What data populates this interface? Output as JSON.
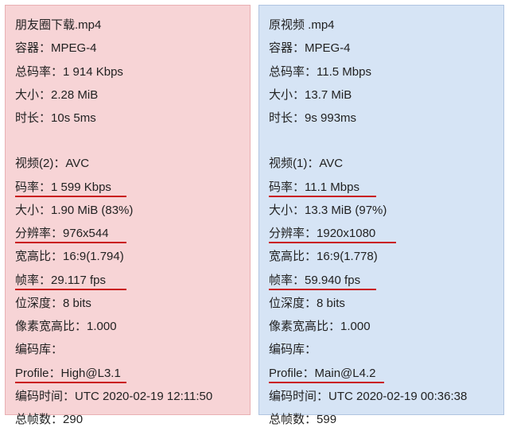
{
  "left": {
    "filename": "朋友圈下载.mp4",
    "container_label": "容器：",
    "container_value": "MPEG-4",
    "total_bitrate_label": "总码率：",
    "total_bitrate_value": "1 914 Kbps",
    "size_label": "大小：",
    "size_value": "2.28 MiB",
    "duration_label": "时长：",
    "duration_value": "10s 5ms",
    "video_header": "视频(2)：AVC",
    "bitrate_label": "码率：",
    "bitrate_value": "1 599 Kbps",
    "vsize_label": "大小：",
    "vsize_value": "1.90 MiB (83%)",
    "resolution_label": "分辨率：",
    "resolution_value": "976x544",
    "aspect_label": "宽高比：",
    "aspect_value": "16:9(1.794)",
    "fps_label": "帧率：",
    "fps_value": "29.117 fps",
    "bitdepth_label": "位深度：",
    "bitdepth_value": "8 bits",
    "par_label": "像素宽高比：",
    "par_value": "1.000",
    "codec_label": "编码库：",
    "profile_label": "Profile：",
    "profile_value": "High@L3.1",
    "enctime_label": "编码时间：",
    "enctime_value": "UTC 2020-02-19 12:11:50",
    "frames_label": "总帧数：",
    "frames_value": "290",
    "underline_widths": {
      "bitrate": 140,
      "resolution": 140,
      "fps": 140,
      "profile": 140
    }
  },
  "right": {
    "filename": "原视频 .mp4",
    "container_label": "容器：",
    "container_value": "MPEG-4",
    "total_bitrate_label": "总码率：",
    "total_bitrate_value": "11.5 Mbps",
    "size_label": "大小：",
    "size_value": "13.7 MiB",
    "duration_label": "时长：",
    "duration_value": "9s 993ms",
    "video_header": "视频(1)：AVC",
    "bitrate_label": "码率：",
    "bitrate_value": "11.1 Mbps",
    "vsize_label": "大小：",
    "vsize_value": "13.3 MiB (97%)",
    "resolution_label": "分辨率：",
    "resolution_value": "1920x1080",
    "aspect_label": "宽高比：",
    "aspect_value": "16:9(1.778)",
    "fps_label": "帧率：",
    "fps_value": "59.940 fps",
    "bitdepth_label": "位深度：",
    "bitdepth_value": "8 bits",
    "par_label": "像素宽高比：",
    "par_value": "1.000",
    "codec_label": "编码库：",
    "profile_label": "Profile：",
    "profile_value": "Main@L4.2",
    "enctime_label": "编码时间：",
    "enctime_value": "UTC 2020-02-19 00:36:38",
    "frames_label": "总帧数：",
    "frames_value": "599",
    "underline_widths": {
      "bitrate": 135,
      "resolution": 160,
      "fps": 135,
      "profile": 145
    }
  }
}
